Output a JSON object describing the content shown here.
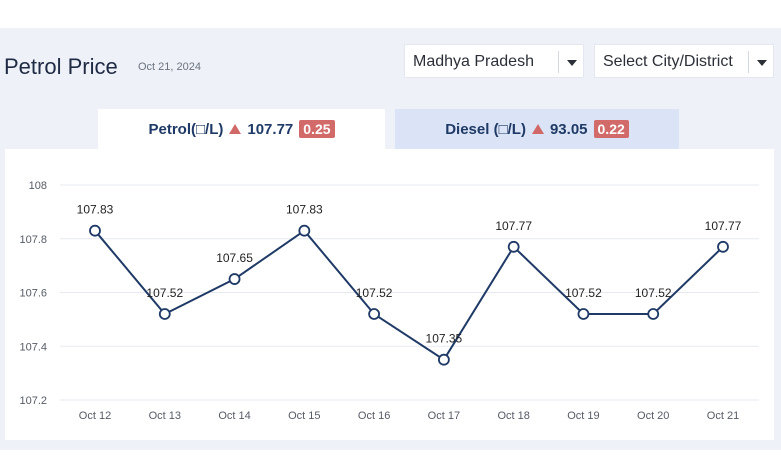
{
  "header": {
    "title": "Petrol Price",
    "date": "Oct 21, 2024",
    "state_select": "Madhya Pradesh",
    "city_select": "Select City/District"
  },
  "tabs": [
    {
      "label": "Petrol(□/L)",
      "price": "107.77",
      "change": "0.25",
      "active": true
    },
    {
      "label": "Diesel (□/L)",
      "price": "93.05",
      "change": "0.22",
      "active": false
    }
  ],
  "colors": {
    "line": "#1f3a66",
    "badge": "#d26a6a",
    "trend_up": "#d06868",
    "inactive_tab": "#dbe4f6"
  },
  "chart_data": {
    "type": "line",
    "categories": [
      "Oct 12",
      "Oct 13",
      "Oct 14",
      "Oct 15",
      "Oct 16",
      "Oct 17",
      "Oct 18",
      "Oct 19",
      "Oct 20",
      "Oct 21"
    ],
    "values": [
      107.83,
      107.52,
      107.65,
      107.83,
      107.52,
      107.35,
      107.77,
      107.52,
      107.52,
      107.77
    ],
    "value_labels": [
      "107.83",
      "107.52",
      "107.65",
      "107.83",
      "107.52",
      "107.35",
      "107.77",
      "107.52",
      "107.52",
      "107.77"
    ],
    "yticks": [
      "107.2",
      "107.4",
      "107.6",
      "107.8",
      "108"
    ],
    "ytick_values": [
      107.2,
      107.4,
      107.6,
      107.8,
      108
    ],
    "ylim": [
      107.2,
      108
    ],
    "grid": true,
    "title": "",
    "xlabel": "",
    "ylabel": ""
  }
}
